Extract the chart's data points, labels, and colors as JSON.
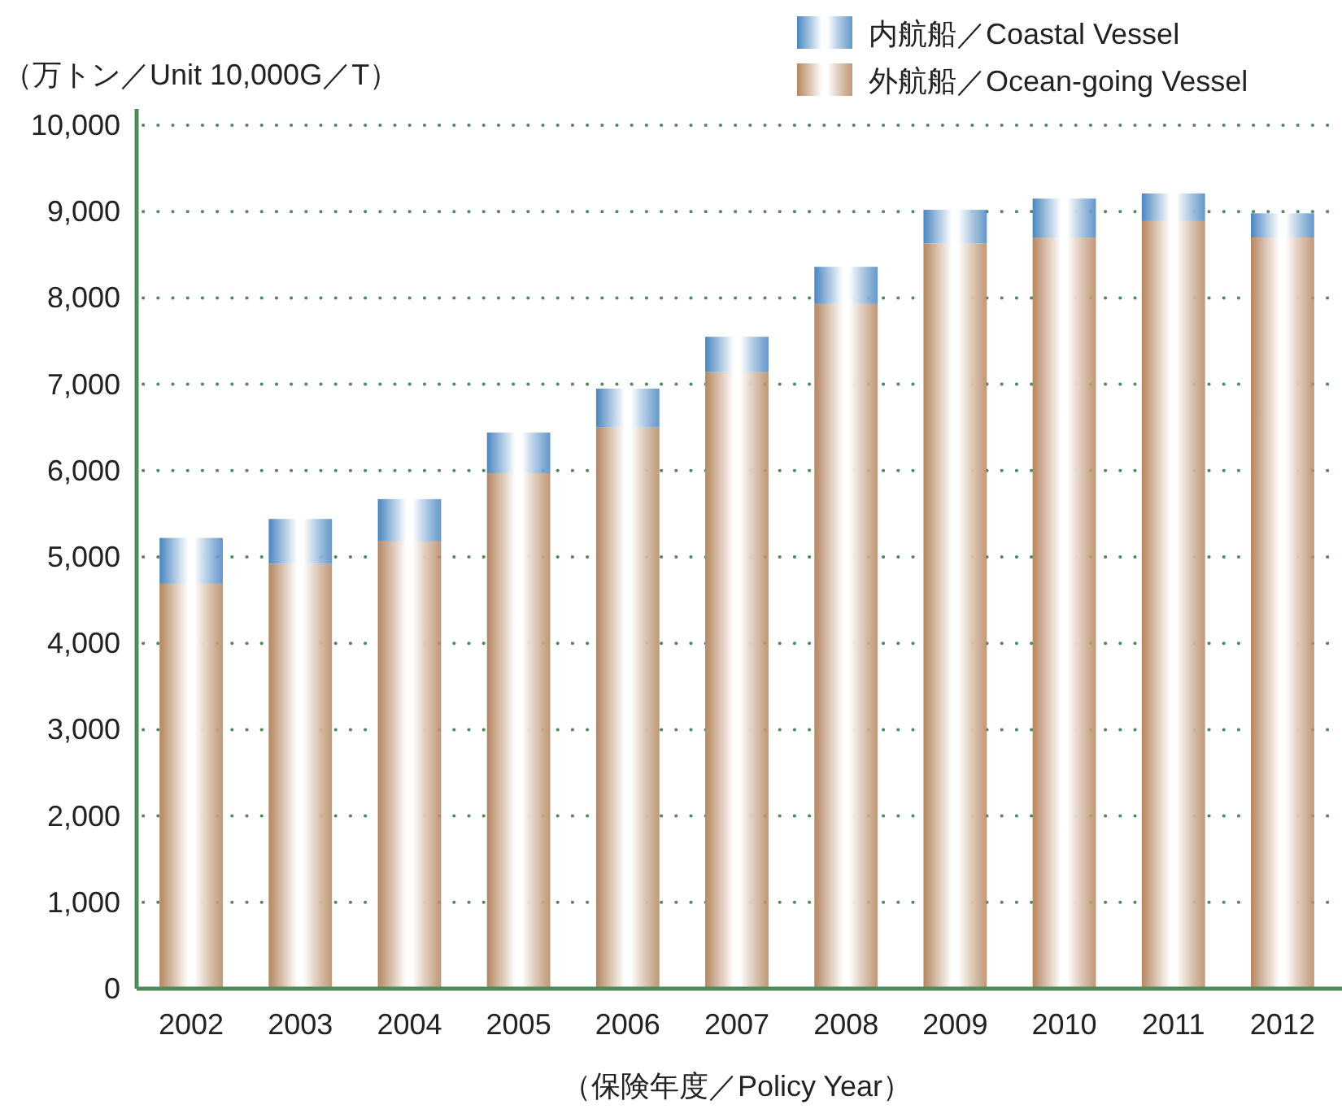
{
  "chart_data": {
    "type": "bar",
    "stacked": true,
    "ylabel": "（万トン／Unit 10,000G／T）",
    "xlabel": "（保険年度／Policy Year）",
    "categories": [
      "2002",
      "2003",
      "2004",
      "2005",
      "2006",
      "2007",
      "2008",
      "2009",
      "2010",
      "2011",
      "2012"
    ],
    "series": [
      {
        "name": "外航船／Ocean-going Vessel",
        "color": "#b5865f",
        "values": [
          4690,
          4920,
          5180,
          5970,
          6500,
          7140,
          7930,
          8630,
          8700,
          8890,
          8700
        ]
      },
      {
        "name": "内航船／Coastal Vessel",
        "color": "#4a86c0",
        "values": [
          530,
          520,
          490,
          470,
          450,
          410,
          430,
          390,
          450,
          320,
          280
        ]
      }
    ],
    "ylim": [
      0,
      10000
    ],
    "yticks": [
      0,
      {
        "value": 1000,
        "label": "1,000"
      },
      {
        "value": 2000,
        "label": "2,000"
      },
      {
        "value": 3000,
        "label": "3,000"
      },
      {
        "value": 4000,
        "label": "4,000"
      },
      {
        "value": 5000,
        "label": "5,000"
      },
      {
        "value": 6000,
        "label": "6,000"
      },
      {
        "value": 7000,
        "label": "7,000"
      },
      {
        "value": 8000,
        "label": "8,000"
      },
      {
        "value": 9000,
        "label": "9,000"
      },
      {
        "value": 10000,
        "label": "10,000"
      }
    ],
    "grid": "y",
    "legend": "top right"
  }
}
